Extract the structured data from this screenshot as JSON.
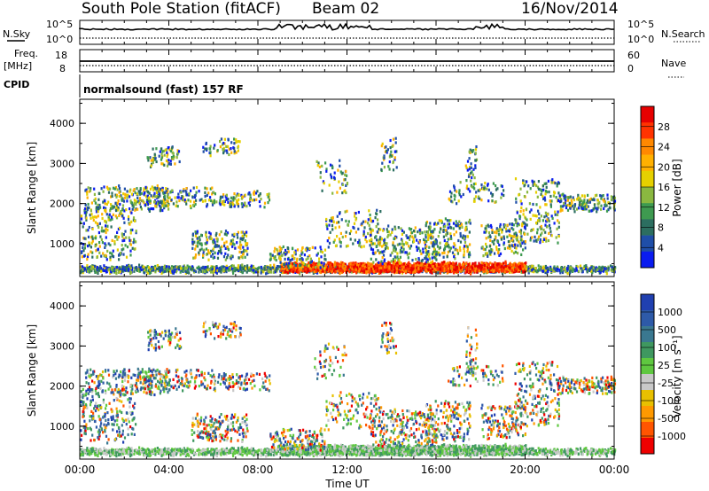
{
  "header": {
    "title": "South Pole Station (fitACF)",
    "beam": "Beam 02",
    "date": "16/Nov/2014"
  },
  "panels": {
    "nsky": {
      "label": "N.Sky",
      "ticks_left": [
        "10^5",
        "10^0"
      ],
      "right_label": "N.Search",
      "ticks_right": [
        "10^5",
        "10^0"
      ]
    },
    "freq": {
      "label_line1": "Freq.",
      "label_line2": "[MHz]",
      "ticks_left": [
        "18",
        "8"
      ],
      "right_label": "Nave",
      "ticks_right": [
        "60",
        "0"
      ]
    },
    "cpid": {
      "label": "CPID",
      "text": "normalsound (fast) 157 RF"
    }
  },
  "colorbars": {
    "power": {
      "label": "Power [dB]",
      "ticks": [
        "28",
        "24",
        "20",
        "16",
        "12",
        "8",
        "4"
      ],
      "colors": [
        "#e60000",
        "#ff3300",
        "#ff8800",
        "#ffb000",
        "#e5d000",
        "#8ab840",
        "#3e9a50",
        "#2c6e60",
        "#1f4ea8",
        "#0a1cf0"
      ]
    },
    "velocity": {
      "label": "Velocity [m s⁻¹]",
      "ticks": [
        "1000",
        "500",
        "100",
        "25",
        "-25",
        "-100",
        "-500",
        "-1000"
      ],
      "colors": [
        "#2040b0",
        "#2e5aa8",
        "#3a7890",
        "#3f9860",
        "#5fc840",
        "#c8c8c8",
        "#e8c000",
        "#ff9900",
        "#ff5500",
        "#ee0000"
      ]
    }
  },
  "chart_data": [
    {
      "type": "heatmap",
      "name": "power",
      "ylabel": "Slant Range [km]",
      "xlabel": "",
      "y_ticks": [
        "1000",
        "2000",
        "3000",
        "4000"
      ],
      "ylim": [
        180,
        4600
      ],
      "xlim": [
        0,
        24
      ]
    },
    {
      "type": "heatmap",
      "name": "velocity",
      "ylabel": "Slant Range [km]",
      "xlabel": "Time UT",
      "y_ticks": [
        "1000",
        "2000",
        "3000",
        "4000"
      ],
      "x_ticks": [
        "00:00",
        "04:00",
        "08:00",
        "12:00",
        "16:00",
        "20:00",
        "00:00"
      ],
      "ylim": [
        180,
        4600
      ],
      "xlim": [
        0,
        24
      ]
    }
  ]
}
